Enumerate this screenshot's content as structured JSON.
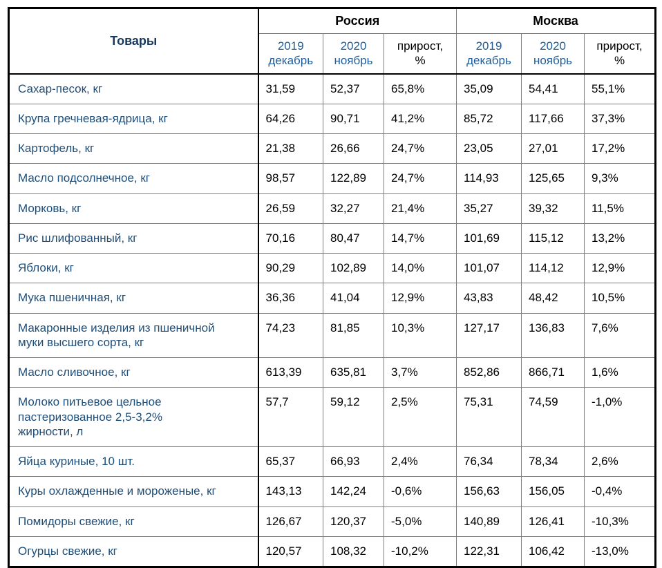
{
  "colors": {
    "background": "#ffffff",
    "outer_border": "#000000",
    "grid_line": "#7d7d7d",
    "strong_line": "#000000",
    "products_header_text": "#17375d",
    "product_text": "#1f4e79",
    "year_header_text": "#1f5c99",
    "value_text": "#000000"
  },
  "table": {
    "products_header": "Товары",
    "groups": [
      {
        "label": "Россия",
        "columns": [
          "2019\nдекабрь",
          "2020\nноябрь",
          "прирост,\n%"
        ]
      },
      {
        "label": "Москва",
        "columns": [
          "2019\nдекабрь",
          "2020\nноябрь",
          "прирост,\n%"
        ]
      }
    ],
    "rows": [
      {
        "name": "Сахар-песок, кг",
        "values": [
          "31,59",
          "52,37",
          "65,8%",
          "35,09",
          "54,41",
          "55,1%"
        ]
      },
      {
        "name": "Крупа гречневая-ядрица, кг",
        "values": [
          "64,26",
          "90,71",
          "41,2%",
          "85,72",
          "117,66",
          "37,3%"
        ]
      },
      {
        "name": "Картофель, кг",
        "values": [
          "21,38",
          "26,66",
          "24,7%",
          "23,05",
          "27,01",
          "17,2%"
        ]
      },
      {
        "name": "Масло подсолнечное, кг",
        "values": [
          "98,57",
          "122,89",
          "24,7%",
          "114,93",
          "125,65",
          "9,3%"
        ]
      },
      {
        "name": "Морковь, кг",
        "values": [
          "26,59",
          "32,27",
          "21,4%",
          "35,27",
          "39,32",
          "11,5%"
        ]
      },
      {
        "name": "Рис шлифованный, кг",
        "values": [
          "70,16",
          "80,47",
          "14,7%",
          "101,69",
          "115,12",
          "13,2%"
        ]
      },
      {
        "name": "Яблоки, кг",
        "values": [
          "90,29",
          "102,89",
          "14,0%",
          "101,07",
          "114,12",
          "12,9%"
        ]
      },
      {
        "name": "Мука пшеничная, кг",
        "values": [
          "36,36",
          "41,04",
          "12,9%",
          "43,83",
          "48,42",
          "10,5%"
        ]
      },
      {
        "name": "Макаронные изделия из пшеничной\nмуки высшего сорта, кг",
        "values": [
          "74,23",
          "81,85",
          "10,3%",
          "127,17",
          "136,83",
          "7,6%"
        ]
      },
      {
        "name": "Масло сливочное, кг",
        "values": [
          "613,39",
          "635,81",
          "3,7%",
          "852,86",
          "866,71",
          "1,6%"
        ]
      },
      {
        "name": "Молоко питьевое цельное\nпастеризованное 2,5-3,2%\nжирности, л",
        "values": [
          "57,7",
          "59,12",
          "2,5%",
          "75,31",
          "74,59",
          "-1,0%"
        ]
      },
      {
        "name": "Яйца куриные, 10 шт.",
        "values": [
          "65,37",
          "66,93",
          "2,4%",
          "76,34",
          "78,34",
          "2,6%"
        ]
      },
      {
        "name": "Куры охлажденные и мороженые, кг",
        "values": [
          "143,13",
          "142,24",
          "-0,6%",
          "156,63",
          "156,05",
          "-0,4%"
        ]
      },
      {
        "name": "Помидоры свежие, кг",
        "values": [
          "126,67",
          "120,37",
          "-5,0%",
          "140,89",
          "126,41",
          "-10,3%"
        ]
      },
      {
        "name": "Огурцы свежие, кг",
        "values": [
          "120,57",
          "108,32",
          "-10,2%",
          "122,31",
          "106,42",
          "-13,0%"
        ]
      }
    ]
  }
}
